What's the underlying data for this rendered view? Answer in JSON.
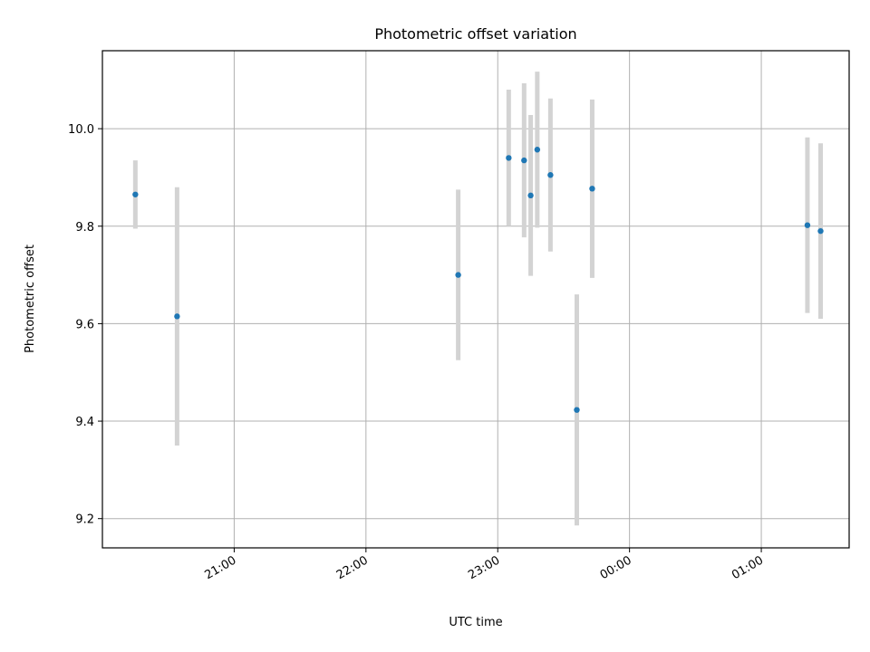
{
  "chart_data": {
    "type": "scatter",
    "title": "Photometric offset variation",
    "xlabel": "UTC time",
    "ylabel": "Photometric offset",
    "x_axis_kind": "time",
    "xlim_minutes_after_2000": [
      0,
      340
    ],
    "ylim": [
      9.14,
      10.16
    ],
    "grid": true,
    "x_ticks": [
      {
        "label": "21:00",
        "minutes_after_2000": 60
      },
      {
        "label": "22:00",
        "minutes_after_2000": 120
      },
      {
        "label": "23:00",
        "minutes_after_2000": 180
      },
      {
        "label": "00:00",
        "minutes_after_2000": 240
      },
      {
        "label": "01:00",
        "minutes_after_2000": 300
      }
    ],
    "y_ticks": [
      {
        "label": "9.2",
        "value": 9.2
      },
      {
        "label": "9.4",
        "value": 9.4
      },
      {
        "label": "9.6",
        "value": 9.6
      },
      {
        "label": "9.8",
        "value": 9.8
      },
      {
        "label": "10.0",
        "value": 10.0
      }
    ],
    "points": [
      {
        "time": "20:15",
        "y": 9.865,
        "err": 0.07
      },
      {
        "time": "20:34",
        "y": 9.615,
        "err": 0.265
      },
      {
        "time": "22:42",
        "y": 9.7,
        "err": 0.175
      },
      {
        "time": "23:05",
        "y": 9.94,
        "err": 0.14
      },
      {
        "time": "23:12",
        "y": 9.935,
        "err": 0.158
      },
      {
        "time": "23:15",
        "y": 9.863,
        "err": 0.165
      },
      {
        "time": "23:18",
        "y": 9.957,
        "err": 0.16
      },
      {
        "time": "23:24",
        "y": 9.905,
        "err": 0.157
      },
      {
        "time": "23:36",
        "y": 9.423,
        "err": 0.237
      },
      {
        "time": "23:43",
        "y": 9.877,
        "err": 0.183
      },
      {
        "time": "01:21",
        "y": 9.802,
        "err": 0.18
      },
      {
        "time": "01:27",
        "y": 9.79,
        "err": 0.18
      }
    ],
    "colors": {
      "marker": "#1f77b4",
      "errorbar": "#d3d3d3",
      "grid": "#b0b0b0",
      "axis": "#000000"
    }
  }
}
